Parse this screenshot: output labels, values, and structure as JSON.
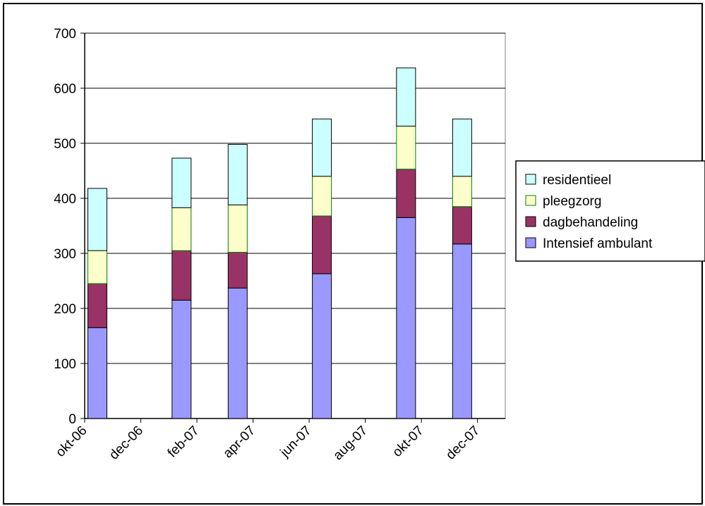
{
  "chart_data": {
    "type": "bar",
    "stacked": true,
    "time_axis": true,
    "x_ticks": [
      "okt-06",
      "dec-06",
      "feb-07",
      "apr-07",
      "jun-07",
      "aug-07",
      "okt-07",
      "dec-07"
    ],
    "categories": [
      "okt-06",
      "jan-07",
      "mrt-07",
      "jun-07",
      "sep-07",
      "nov-07"
    ],
    "series": [
      {
        "name": "Intensief ambulant",
        "color": "#9999FF",
        "values": [
          165,
          215,
          237,
          263,
          365,
          317
        ]
      },
      {
        "name": "dagbehandeling",
        "color": "#993366",
        "values": [
          80,
          90,
          65,
          105,
          88,
          68
        ]
      },
      {
        "name": "pleegzorg",
        "color": "#FFFFCC",
        "edge": "#008000",
        "values": [
          60,
          78,
          86,
          72,
          78,
          55
        ]
      },
      {
        "name": "residentieel",
        "color": "#CCFFFF",
        "values": [
          113,
          90,
          110,
          104,
          106,
          104
        ]
      }
    ],
    "ylim": [
      0,
      700
    ],
    "yticks": [
      0,
      100,
      200,
      300,
      400,
      500,
      600,
      700
    ],
    "grid": true,
    "legend_position": "right",
    "legend_order": [
      "residentieel",
      "pleegzorg",
      "dagbehandeling",
      "Intensief ambulant"
    ]
  }
}
